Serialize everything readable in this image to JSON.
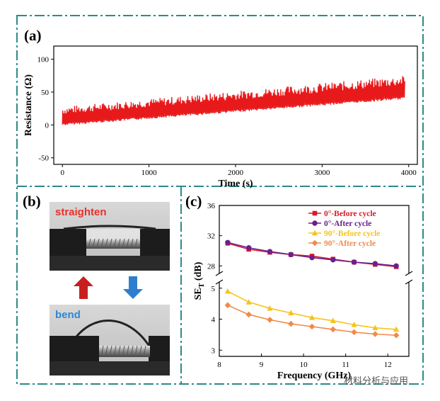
{
  "panels": {
    "a": {
      "label": "(a)"
    },
    "b": {
      "label": "(b)",
      "top_caption": "straighten",
      "bottom_caption": "bend"
    },
    "c": {
      "label": "(c)"
    }
  },
  "colors": {
    "frame": "#2d8a8a",
    "line_a": "#e8191b",
    "before0": "#d91a2a",
    "after0": "#6b1f8e",
    "before90": "#f7c31b",
    "after90": "#f28a4a",
    "straighten_text": "#e8312a",
    "bend_text": "#2f86d2",
    "arrow_up": "#c71f1f",
    "arrow_down": "#2d7fce"
  },
  "chart_data": [
    {
      "type": "line",
      "panel": "a",
      "title": "",
      "xlabel": "Time (s)",
      "ylabel": "Resistance (Ω)",
      "xlim": [
        -100,
        4100
      ],
      "ylim": [
        -60,
        120
      ],
      "xticks": [
        0,
        1000,
        2000,
        3000,
        4000
      ],
      "yticks": [
        -50,
        0,
        50,
        100
      ],
      "series": [
        {
          "name": "Resistance",
          "trend_start": [
            0,
            2
          ],
          "trend_end": [
            3950,
            42
          ],
          "peak_start": 28,
          "peak_end": 75,
          "cycles": 320
        }
      ]
    },
    {
      "type": "line",
      "panel": "c",
      "title": "",
      "xlabel": "Frequency (GHz)",
      "ylabel": "SE",
      "ylabel_sub": "T",
      "ylabel_unit": " (dB)",
      "xlim": [
        8,
        12.5
      ],
      "xticks": [
        8,
        9,
        10,
        11,
        12
      ],
      "upper_ylim": [
        27,
        36
      ],
      "upper_yticks": [
        28,
        32,
        36
      ],
      "lower_ylim": [
        2.8,
        5.2
      ],
      "lower_yticks": [
        3,
        4,
        5
      ],
      "x": [
        8.2,
        8.7,
        9.2,
        9.7,
        10.2,
        10.7,
        11.2,
        11.7,
        12.2
      ],
      "series": [
        {
          "name": "0°-Before cycle",
          "axis": "upper",
          "marker": "square",
          "values": [
            31.0,
            30.2,
            29.8,
            29.5,
            29.3,
            28.9,
            28.5,
            28.2,
            27.9
          ]
        },
        {
          "name": "0°-After cycle",
          "axis": "upper",
          "marker": "circle",
          "values": [
            31.1,
            30.4,
            29.9,
            29.5,
            29.1,
            28.8,
            28.5,
            28.3,
            28.0
          ]
        },
        {
          "name": "90°-Before cycle",
          "axis": "lower",
          "marker": "triangle",
          "values": [
            4.9,
            4.55,
            4.35,
            4.2,
            4.05,
            3.95,
            3.82,
            3.72,
            3.67
          ]
        },
        {
          "name": "90°-After cycle",
          "axis": "lower",
          "marker": "diamond",
          "values": [
            4.45,
            4.15,
            3.98,
            3.85,
            3.76,
            3.67,
            3.58,
            3.52,
            3.48
          ]
        }
      ]
    }
  ],
  "watermark": "材料分析与应用"
}
